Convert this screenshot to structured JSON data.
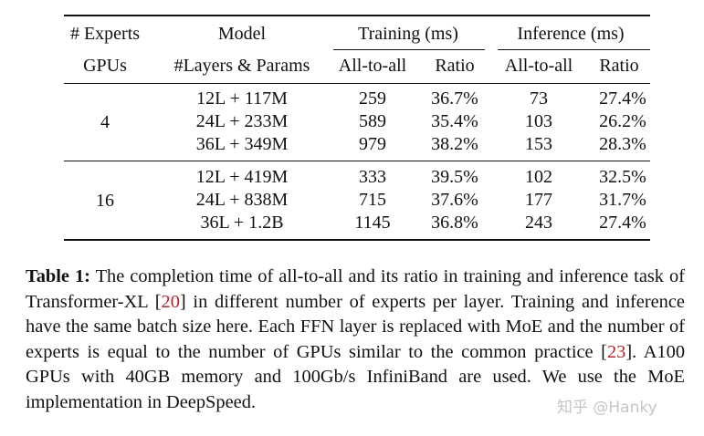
{
  "table": {
    "header_row1": {
      "experts": "# Experts",
      "model": "Model",
      "training": "Training (ms)",
      "inference": "Inference (ms)"
    },
    "header_row2": {
      "gpus": "GPUs",
      "layers_params": "#Layers & Params",
      "train_a2a": "All-to-all",
      "train_ratio": "Ratio",
      "inf_a2a": "All-to-all",
      "inf_ratio": "Ratio"
    },
    "groups": [
      {
        "experts": "4",
        "rows": [
          {
            "model": "12L + 117M",
            "train_a2a": "259",
            "train_ratio": "36.7%",
            "inf_a2a": "73",
            "inf_ratio": "27.4%"
          },
          {
            "model": "24L + 233M",
            "train_a2a": "589",
            "train_ratio": "35.4%",
            "inf_a2a": "103",
            "inf_ratio": "26.2%"
          },
          {
            "model": "36L + 349M",
            "train_a2a": "979",
            "train_ratio": "38.2%",
            "inf_a2a": "153",
            "inf_ratio": "28.3%"
          }
        ]
      },
      {
        "experts": "16",
        "rows": [
          {
            "model": "12L + 419M",
            "train_a2a": "333",
            "train_ratio": "39.5%",
            "inf_a2a": "102",
            "inf_ratio": "32.5%"
          },
          {
            "model": "24L + 838M",
            "train_a2a": "715",
            "train_ratio": "37.6%",
            "inf_a2a": "177",
            "inf_ratio": "31.7%"
          },
          {
            "model": "36L + 1.2B",
            "train_a2a": "1145",
            "train_ratio": "36.8%",
            "inf_a2a": "243",
            "inf_ratio": "27.4%"
          }
        ]
      }
    ]
  },
  "caption": {
    "label": "Table 1:",
    "text1": " The completion time of all-to-all and its ratio in training and inference task of Transformer-XL [",
    "ref1": "20",
    "text2": "] in different number of experts per layer. Training and inference have the same batch size here. Each FFN layer is replaced with MoE and the number of experts is equal to the number of GPUs similar to the common practice [",
    "ref2": "23",
    "text3": "]. A100 GPUs with 40GB memory and 100Gb/s InfiniBand are used. We use the MoE implementation in DeepSpeed."
  },
  "watermark": "知乎 @Hanky",
  "colors": {
    "ref": "#b3262c",
    "text": "#111111"
  }
}
